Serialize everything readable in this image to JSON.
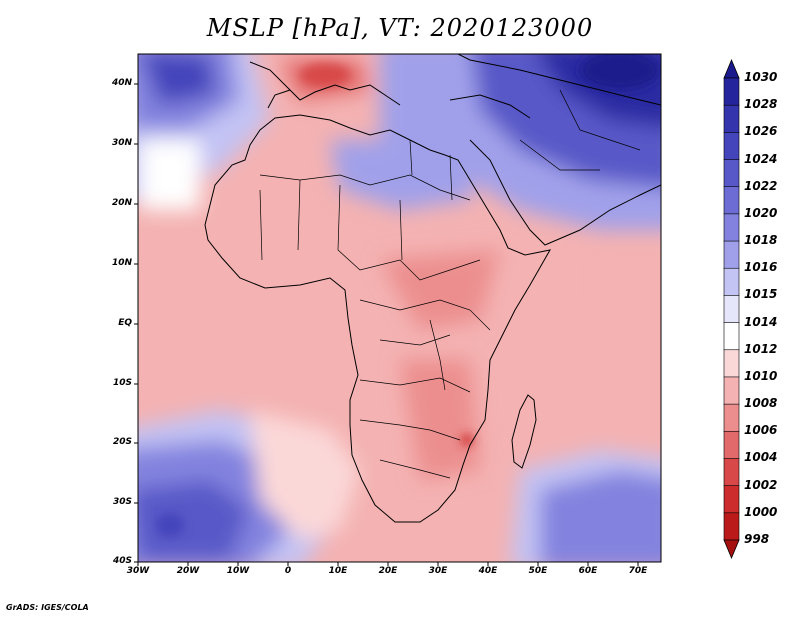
{
  "title": "MSLP [hPa], VT: 2020123000",
  "map": {
    "lat_labels": [
      "40N",
      "30N",
      "20N",
      "10N",
      "EQ",
      "10S",
      "20S",
      "30S",
      "40S"
    ],
    "lon_labels": [
      "30W",
      "20W",
      "10W",
      "0",
      "10E",
      "20E",
      "30E",
      "40E",
      "50E",
      "60E",
      "70E"
    ],
    "lat_range": [
      -40,
      45
    ],
    "lon_range": [
      -30,
      75
    ],
    "field": "Mean sea-level pressure",
    "units": "hPa"
  },
  "colorbar": {
    "levels": [
      "1030",
      "1028",
      "1026",
      "1024",
      "1022",
      "1020",
      "1018",
      "1016",
      "1015",
      "1014",
      "1012",
      "1010",
      "1008",
      "1006",
      "1004",
      "1002",
      "1000",
      "998"
    ],
    "colors": [
      "#1a1a8c",
      "#24249c",
      "#3434ac",
      "#4545bb",
      "#5858c8",
      "#6c6cd4",
      "#8383df",
      "#a0a0ea",
      "#c3c3f4",
      "#e6e6fb",
      "#ffffff",
      "#fbd8d8",
      "#f4b2b2",
      "#ec8e8e",
      "#e26a6a",
      "#d84848",
      "#cc2c2c",
      "#bb1a1a",
      "#a51010"
    ]
  },
  "footer": "GrADS: IGES/COLA"
}
